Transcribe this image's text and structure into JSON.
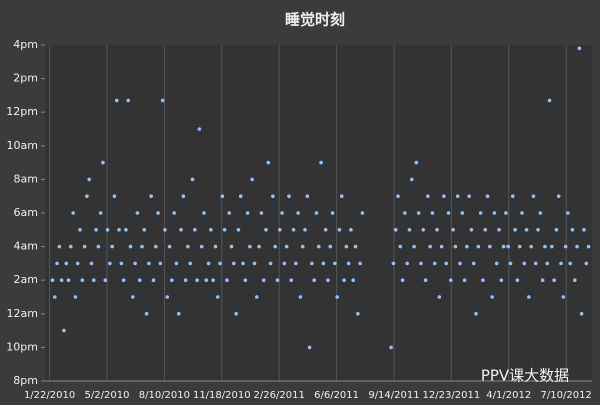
{
  "chart_data": {
    "type": "scatter",
    "title": "睡觉时刻",
    "watermark": "PPV课大数据",
    "color": "#8fc3ff",
    "grid": true,
    "xlim": [
      -8,
      945
    ],
    "ylim": [
      20,
      40
    ],
    "xticks": [
      {
        "value": 0,
        "label": "1/22/2010"
      },
      {
        "value": 100,
        "label": "5/2/2010"
      },
      {
        "value": 200,
        "label": "8/10/2010"
      },
      {
        "value": 300,
        "label": "11/18/2010"
      },
      {
        "value": 400,
        "label": "2/26/2011"
      },
      {
        "value": 500,
        "label": "6/6/2011"
      },
      {
        "value": 600,
        "label": "9/14/2011"
      },
      {
        "value": 700,
        "label": "12/23/2011"
      },
      {
        "value": 800,
        "label": "4/1/2012"
      },
      {
        "value": 900,
        "label": "7/10/2012"
      }
    ],
    "yticks": [
      {
        "value": 20,
        "label": "8pm"
      },
      {
        "value": 22,
        "label": "10pm"
      },
      {
        "value": 24,
        "label": "12am"
      },
      {
        "value": 26,
        "label": "2am"
      },
      {
        "value": 28,
        "label": "4am"
      },
      {
        "value": 30,
        "label": "6am"
      },
      {
        "value": 32,
        "label": "8am"
      },
      {
        "value": 34,
        "label": "10am"
      },
      {
        "value": 36,
        "label": "12pm"
      },
      {
        "value": 38,
        "label": "2pm"
      },
      {
        "value": 40,
        "label": "4pm"
      }
    ],
    "x": [
      5,
      9,
      13,
      17,
      21,
      25,
      29,
      33,
      37,
      41,
      45,
      49,
      53,
      57,
      61,
      65,
      69,
      73,
      77,
      81,
      85,
      89,
      93,
      97,
      101,
      105,
      109,
      113,
      117,
      121,
      125,
      129,
      133,
      137,
      141,
      145,
      149,
      153,
      157,
      161,
      165,
      169,
      173,
      177,
      181,
      185,
      189,
      193,
      197,
      201,
      205,
      209,
      213,
      217,
      221,
      225,
      229,
      233,
      237,
      241,
      245,
      249,
      253,
      257,
      261,
      265,
      269,
      273,
      277,
      281,
      285,
      289,
      293,
      297,
      301,
      305,
      309,
      313,
      317,
      321,
      325,
      329,
      333,
      337,
      341,
      345,
      349,
      353,
      357,
      361,
      365,
      369,
      373,
      377,
      381,
      385,
      389,
      393,
      397,
      401,
      405,
      409,
      413,
      417,
      421,
      425,
      429,
      433,
      437,
      441,
      445,
      449,
      453,
      457,
      461,
      465,
      469,
      473,
      477,
      481,
      485,
      489,
      493,
      497,
      501,
      505,
      509,
      513,
      517,
      521,
      525,
      529,
      533,
      537,
      541,
      545,
      595,
      599,
      603,
      607,
      611,
      615,
      619,
      623,
      627,
      631,
      635,
      639,
      643,
      647,
      651,
      655,
      659,
      663,
      667,
      671,
      675,
      679,
      683,
      687,
      691,
      695,
      699,
      703,
      707,
      711,
      715,
      719,
      723,
      727,
      731,
      735,
      739,
      743,
      747,
      751,
      755,
      759,
      763,
      767,
      771,
      775,
      779,
      783,
      787,
      791,
      795,
      799,
      803,
      807,
      811,
      815,
      819,
      823,
      827,
      831,
      835,
      839,
      843,
      847,
      851,
      855,
      859,
      863,
      867,
      871,
      875,
      879,
      883,
      887,
      891,
      895,
      899,
      903,
      907,
      911,
      915,
      919,
      923,
      927,
      931,
      935,
      939
    ],
    "values": [
      26,
      25,
      27,
      28,
      26,
      23,
      27,
      26,
      28,
      30,
      25,
      27,
      29,
      26,
      28,
      31,
      32,
      27,
      26,
      29,
      28,
      30,
      33,
      26,
      29,
      27,
      28,
      31,
      36.7,
      29,
      27,
      26,
      29,
      36.7,
      28,
      25,
      27,
      30,
      26,
      28,
      29,
      24,
      27,
      31,
      26,
      28,
      30,
      27,
      36.7,
      29,
      25,
      28,
      26,
      30,
      27,
      24,
      29,
      31,
      26,
      28,
      27,
      32,
      29,
      26,
      35,
      28,
      30,
      26,
      27,
      29,
      26,
      28,
      25,
      27,
      31,
      29,
      26,
      30,
      28,
      27,
      24,
      29,
      31,
      27,
      26,
      30,
      28,
      32,
      27,
      25,
      28,
      30,
      26,
      29,
      33,
      27,
      31,
      28,
      26,
      29,
      30,
      27,
      28,
      31,
      26,
      29,
      27,
      30,
      25,
      28,
      29,
      31,
      22,
      27,
      26,
      30,
      28,
      33,
      27,
      29,
      26,
      28,
      30,
      27,
      25,
      29,
      31,
      26,
      28,
      27,
      29,
      26,
      28,
      24,
      27,
      30,
      22,
      27,
      29,
      31,
      28,
      26,
      30,
      27,
      29,
      32,
      28,
      33,
      30,
      27,
      29,
      26,
      31,
      28,
      30,
      27,
      29,
      25,
      28,
      31,
      27,
      30,
      26,
      29,
      28,
      31,
      27,
      30,
      26,
      28,
      31,
      29,
      27,
      24,
      28,
      30,
      26,
      29,
      31,
      28,
      25,
      30,
      27,
      29,
      26,
      28,
      30,
      28,
      27,
      31,
      29,
      26,
      28,
      30,
      27,
      29,
      25,
      28,
      31,
      27,
      29,
      30,
      26,
      28,
      27,
      36.7,
      28,
      26,
      29,
      31,
      27,
      25,
      28,
      30,
      27,
      29,
      26,
      28,
      39.8,
      24,
      29,
      27,
      28
    ]
  }
}
